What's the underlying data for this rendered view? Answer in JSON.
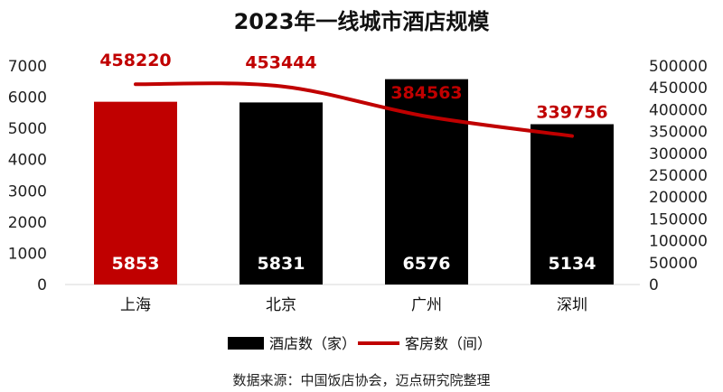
{
  "chart_data": {
    "type": "bar",
    "title": "2023年一线城市酒店规模",
    "categories": [
      "上海",
      "北京",
      "广州",
      "深圳"
    ],
    "series": [
      {
        "name": "酒店数（家）",
        "type": "bar",
        "axis": "left",
        "values": [
          5853,
          5831,
          6576,
          5134
        ]
      },
      {
        "name": "客房数（间）",
        "type": "line",
        "axis": "right",
        "values": [
          458220,
          453444,
          384563,
          339756
        ]
      }
    ],
    "left_axis": {
      "ylim": [
        0,
        7000
      ],
      "ticks": [
        "0",
        "1000",
        "2000",
        "3000",
        "4000",
        "5000",
        "6000",
        "7000"
      ]
    },
    "right_axis": {
      "ylim": [
        0,
        500000
      ],
      "ticks": [
        "0",
        "50000",
        "100000",
        "150000",
        "200000",
        "250000",
        "300000",
        "350000",
        "400000",
        "450000",
        "500000"
      ]
    },
    "bar_colors": [
      "#c00000",
      "#000000",
      "#000000",
      "#000000"
    ],
    "line_color": "#c00000",
    "grid": false,
    "legend_position": "bottom",
    "source": "数据来源：中国饭店协会，迈点研究院整理"
  }
}
